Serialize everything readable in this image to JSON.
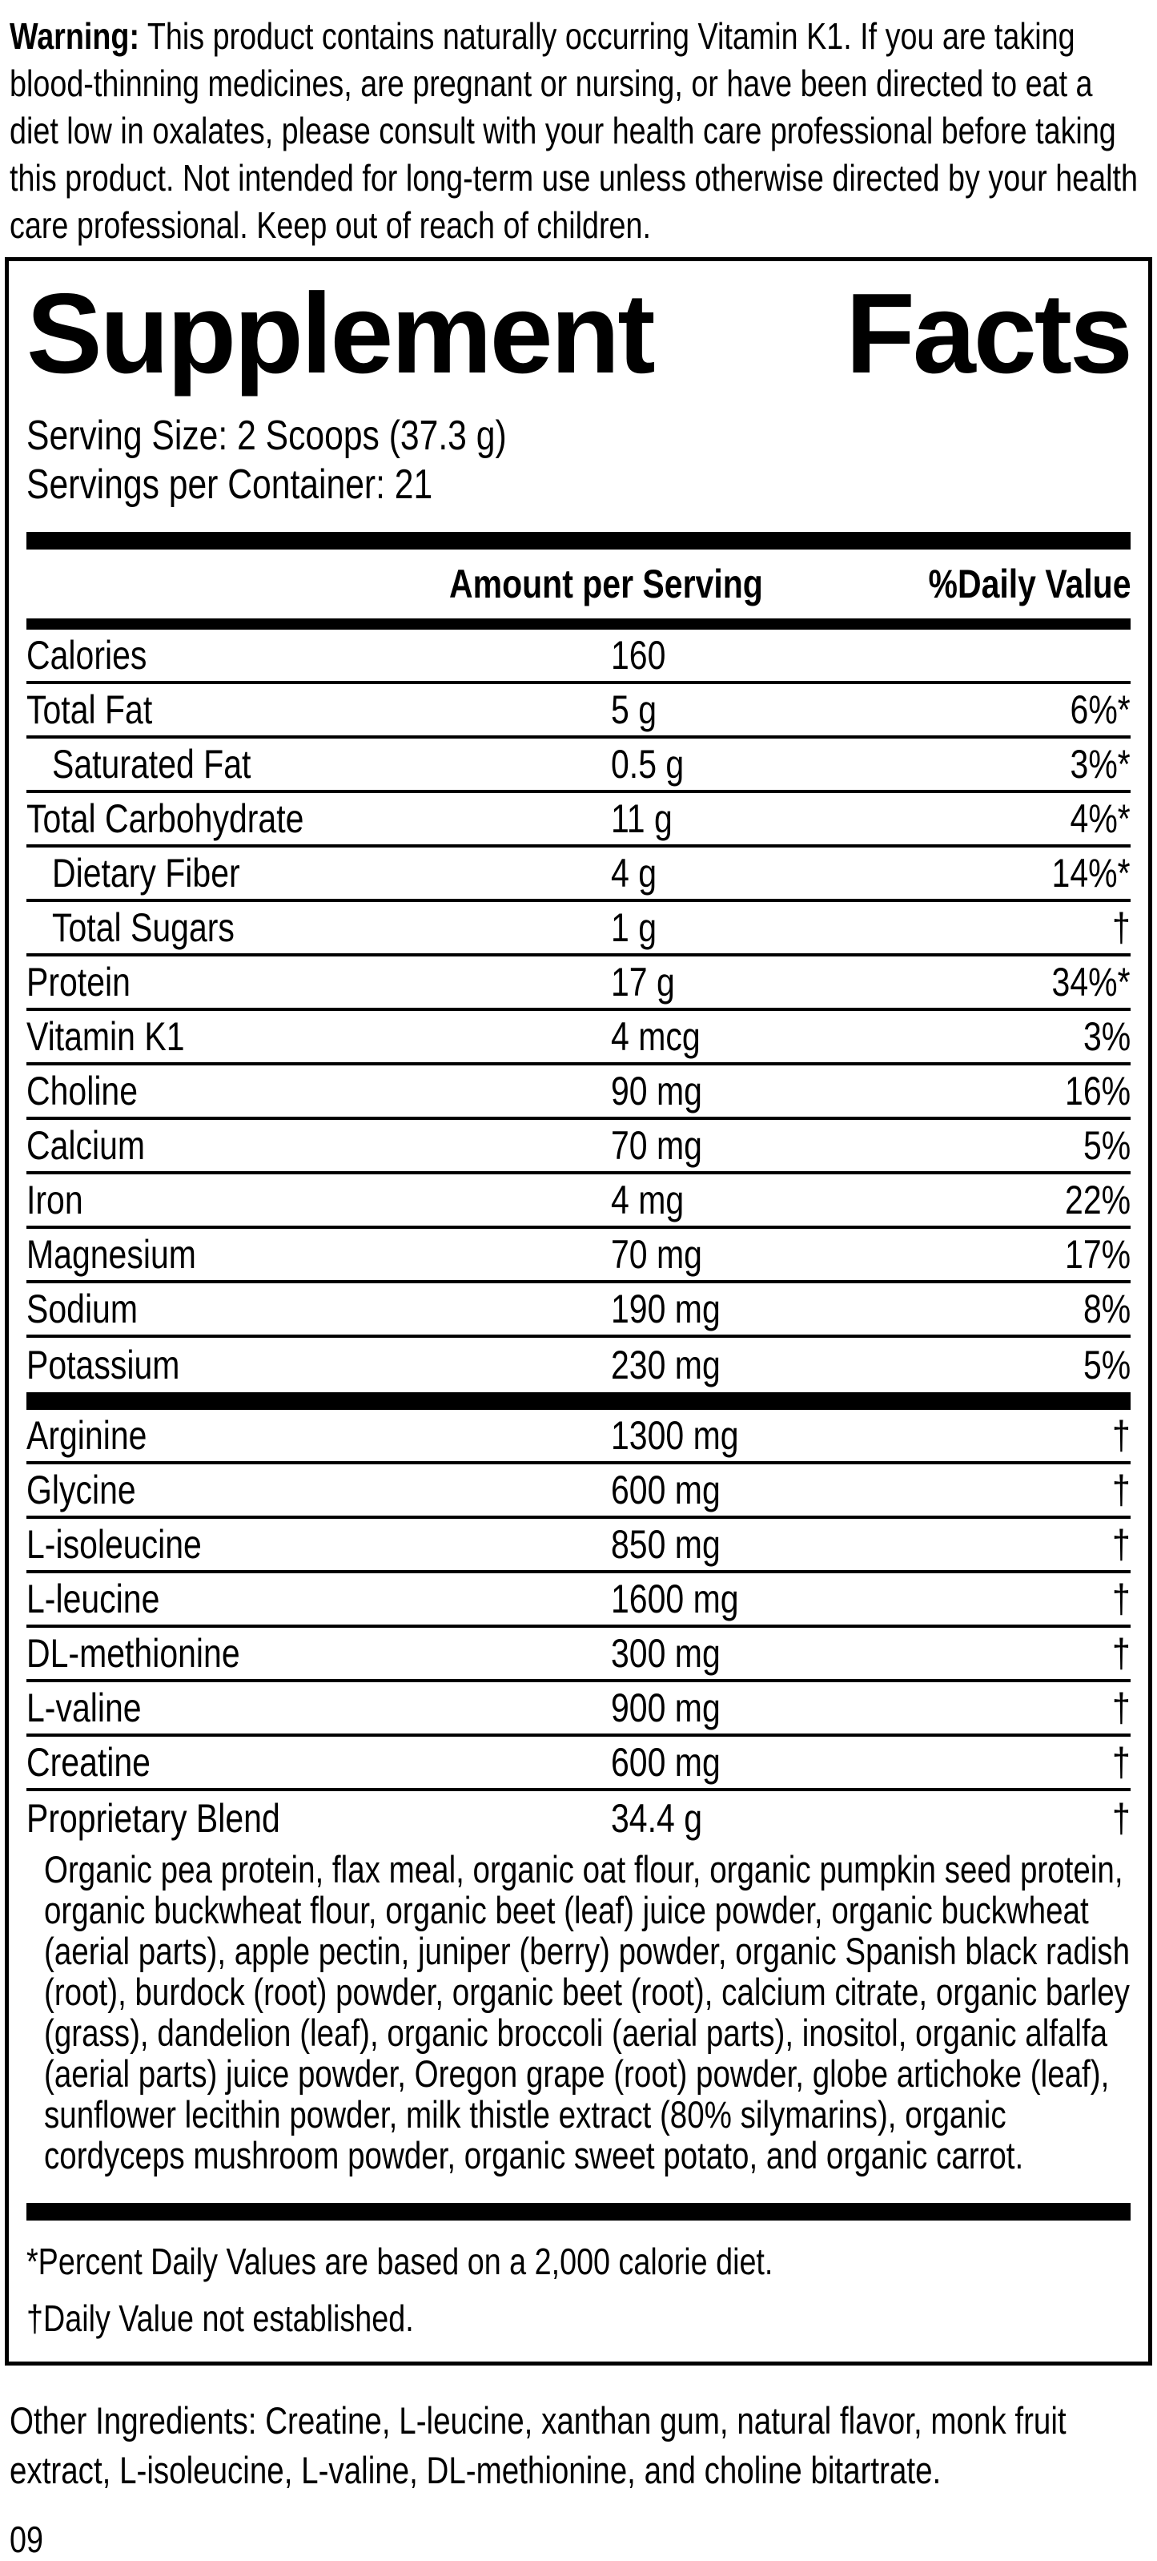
{
  "warning": {
    "label": "Warning:",
    "text": " This product contains naturally occurring Vitamin K1. If you are taking blood-thinning medicines, are pregnant or nursing, or have been directed to eat a diet low in oxalates, please consult with your health care professional before taking this product. Not intended for long-term use unless otherwise directed by your health care professional. Keep out of reach of children."
  },
  "panel": {
    "title_word1": "Supplement",
    "title_word2": "Facts",
    "serving_size": "Serving Size: 2 Scoops (37.3 g)",
    "servings_per_container": "Servings per Container: 21",
    "header": {
      "amount": "Amount per Serving",
      "daily_value": "%Daily Value"
    },
    "nutrient_rows": [
      {
        "label": "Calories",
        "amount": "160",
        "dv": "",
        "indent": false
      },
      {
        "label": "Total Fat",
        "amount": "5 g",
        "dv": "6%*",
        "indent": false
      },
      {
        "label": "Saturated Fat",
        "amount": "0.5 g",
        "dv": "3%*",
        "indent": true
      },
      {
        "label": "Total Carbohydrate",
        "amount": "11 g",
        "dv": "4%*",
        "indent": false
      },
      {
        "label": "Dietary Fiber",
        "amount": "4 g",
        "dv": "14%*",
        "indent": true
      },
      {
        "label": "Total Sugars",
        "amount": "1 g",
        "dv": "†",
        "indent": true
      },
      {
        "label": "Protein",
        "amount": "17 g",
        "dv": "34%*",
        "indent": false
      },
      {
        "label": "Vitamin K1",
        "amount": "4 mcg",
        "dv": "3%",
        "indent": false
      },
      {
        "label": "Choline",
        "amount": "90 mg",
        "dv": "16%",
        "indent": false
      },
      {
        "label": "Calcium",
        "amount": "70 mg",
        "dv": "5%",
        "indent": false
      },
      {
        "label": "Iron",
        "amount": "4 mg",
        "dv": "22%",
        "indent": false
      },
      {
        "label": "Magnesium",
        "amount": "70 mg",
        "dv": "17%",
        "indent": false
      },
      {
        "label": "Sodium",
        "amount": "190 mg",
        "dv": "8%",
        "indent": false
      },
      {
        "label": "Potassium",
        "amount": "230 mg",
        "dv": "5%",
        "indent": false
      }
    ],
    "amino_rows": [
      {
        "label": "Arginine",
        "amount": "1300 mg",
        "dv": "†",
        "indent": false
      },
      {
        "label": "Glycine",
        "amount": "600 mg",
        "dv": "†",
        "indent": false
      },
      {
        "label": "L-isoleucine",
        "amount": "850 mg",
        "dv": "†",
        "indent": false
      },
      {
        "label": "L-leucine",
        "amount": "1600 mg",
        "dv": "†",
        "indent": false
      },
      {
        "label": "DL-methionine",
        "amount": "300 mg",
        "dv": "†",
        "indent": false
      },
      {
        "label": "L-valine",
        "amount": "900 mg",
        "dv": "†",
        "indent": false
      },
      {
        "label": "Creatine",
        "amount": "600 mg",
        "dv": "†",
        "indent": false
      }
    ],
    "blend_row": {
      "label": "Proprietary Blend",
      "amount": "34.4 g",
      "dv": "†",
      "indent": false
    },
    "blend_description": "Organic pea protein, flax meal, organic oat flour, organic pumpkin seed protein, organic buckwheat flour, organic beet (leaf) juice powder, organic buckwheat (aerial parts), apple pectin, juniper (berry) powder, organic Spanish black radish (root), burdock (root) powder, organic beet (root), calcium citrate, organic barley (grass), dandelion (leaf), organic broccoli (aerial parts), inositol, organic alfalfa (aerial parts) juice powder, Oregon grape (root) powder, globe artichoke (leaf), sunflower lecithin powder, milk thistle extract (80% silymarins), organic cordyceps mushroom powder, organic sweet potato, and organic carrot.",
    "footnotes": {
      "percent": "*Percent Daily Values are based on a 2,000 calorie diet.",
      "dagger": "†Daily Value not established."
    }
  },
  "other_ingredients": "Other Ingredients: Creatine, L-leucine, xanthan gum, natural flavor, monk fruit extract, L-isoleucine, L-valine, DL-methionine, and choline bitartrate.",
  "page_number": "09",
  "colors": {
    "text": "#000000",
    "background": "#ffffff"
  }
}
